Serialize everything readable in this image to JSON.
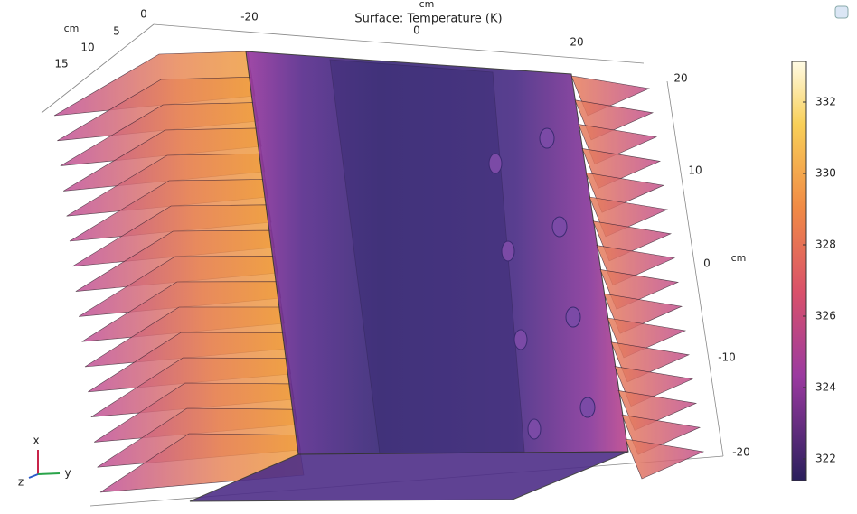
{
  "title": "Surface: Temperature (K)",
  "axes": {
    "top": {
      "unit": "cm",
      "ticks": [
        -20,
        0,
        20
      ]
    },
    "left": {
      "unit": "cm",
      "ticks": [
        0,
        5,
        10,
        15
      ]
    },
    "right": {
      "unit": "cm",
      "ticks": [
        20,
        10,
        0,
        -10,
        -20
      ]
    }
  },
  "colorbar": {
    "ticks": [
      332,
      330,
      328,
      326,
      324,
      322
    ]
  },
  "triad": {
    "x": "x",
    "y": "y",
    "z": "z"
  }
}
